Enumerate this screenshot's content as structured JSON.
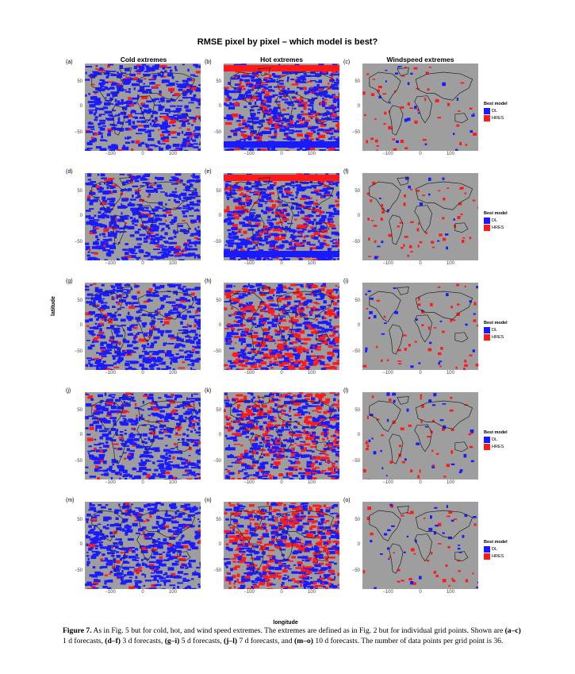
{
  "figure": {
    "title": "RMSE pixel by pixel – which model is best?",
    "columns": [
      "Cold extremes",
      "Hot extremes",
      "Windspeed extremes"
    ],
    "panel_labels": [
      [
        "(a)",
        "(b)",
        "(c)"
      ],
      [
        "(d)",
        "(e)",
        "(f)"
      ],
      [
        "(g)",
        "(h)",
        "(i)"
      ],
      [
        "(j)",
        "(k)",
        "(l)"
      ],
      [
        "(m)",
        "(n)",
        "(o)"
      ]
    ],
    "y_ticks": [
      "50",
      "0",
      "−50"
    ],
    "x_ticks": [
      "−100",
      "0",
      "100"
    ],
    "xlabel": "longitude",
    "ylabel": "latitude",
    "legend": {
      "title": "Best model",
      "items": [
        {
          "label": "DL",
          "color": "#1a1aff"
        },
        {
          "label": "HRES",
          "color": "#ff1a1a"
        }
      ]
    },
    "colors": {
      "background": "#9e9e9e",
      "dl": "#1a1aff",
      "hres": "#ff1a1a",
      "coast": "#222222"
    }
  },
  "caption": {
    "label": "Figure 7.",
    "text1": " As in Fig. 5 but for cold, hot, and wind speed extremes. The extremes are defined as in Fig. 2 but for individual grid points. Shown are ",
    "b1": "(a–c)",
    "t2": " 1 d forecasts, ",
    "b2": "(d–f)",
    "t3": " 3 d forecasts, ",
    "b3": "(g–i)",
    "t4": " 5 d forecasts, ",
    "b4": "(j–l)",
    "t5": " 7 d forecasts, and ",
    "b5": "(m–o)",
    "t6": " 10 d forecasts. The number of data points per grid point is 36."
  }
}
